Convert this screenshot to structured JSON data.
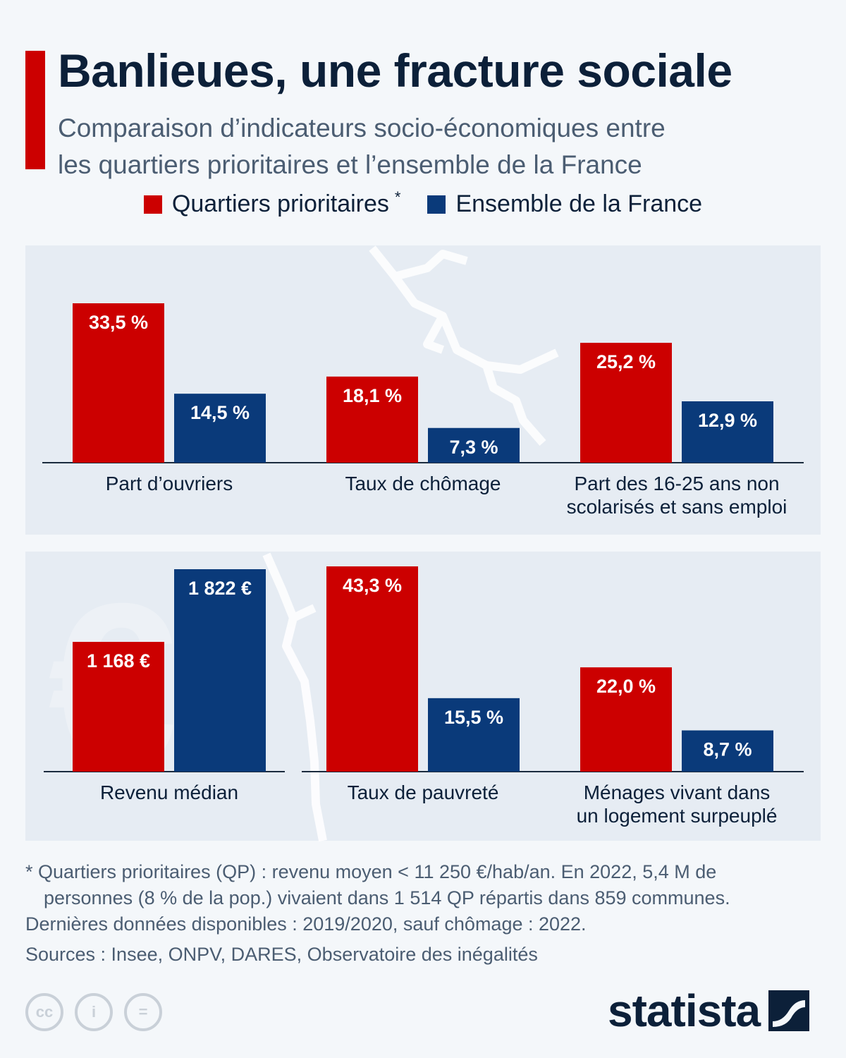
{
  "header": {
    "title": "Banlieues, une fracture sociale",
    "subtitle_lines": [
      "Comparaison d’indicateurs socio-économiques entre",
      "les quartiers prioritaires et l’ensemble de la France"
    ]
  },
  "legend": {
    "qp_label": "Quartiers prioritaires",
    "qp_note": "*",
    "france_label": "Ensemble de la France"
  },
  "colors": {
    "qp": "#cc0000",
    "france": "#0a3a7a",
    "accent": "#cc0000",
    "panel_bg": "#e6ecf3",
    "text_dark": "#0c2039"
  },
  "chart_data": [
    {
      "type": "bar",
      "unit": "%",
      "series_names": [
        "Quartiers prioritaires",
        "Ensemble de la France"
      ],
      "groups": [
        {
          "category": "Part d’ouvriers",
          "values": [
            33.5,
            14.5
          ],
          "labels": [
            "33,5 %",
            "14,5 %"
          ]
        },
        {
          "category": "Taux de chômage",
          "values": [
            18.1,
            7.3
          ],
          "labels": [
            "18,1 %",
            "7,3 %"
          ]
        },
        {
          "category": "Part des 16-25 ans non scolarisés et sans emploi",
          "category_lines": [
            "Part des 16-25 ans non",
            "scolarisés et sans emploi"
          ],
          "values": [
            25.2,
            12.9
          ],
          "labels": [
            "25,2 %",
            "12,9 %"
          ]
        }
      ]
    },
    {
      "type": "bar",
      "unit": "€",
      "series_names": [
        "Quartiers prioritaires",
        "Ensemble de la France"
      ],
      "groups": [
        {
          "category": "Revenu médian",
          "values": [
            1168,
            1822
          ],
          "labels": [
            "1 168 €",
            "1 822 €"
          ]
        }
      ]
    },
    {
      "type": "bar",
      "unit": "%",
      "series_names": [
        "Quartiers prioritaires",
        "Ensemble de la France"
      ],
      "groups": [
        {
          "category": "Taux de pauvreté",
          "values": [
            43.3,
            15.5
          ],
          "labels": [
            "43,3 %",
            "15,5 %"
          ]
        },
        {
          "category": "Ménages vivant dans un logement surpeuplé",
          "category_lines": [
            "Ménages vivant dans",
            "un logement surpeuplé"
          ],
          "values": [
            22.0,
            8.7
          ],
          "labels": [
            "22,0 %",
            "8,7 %"
          ]
        }
      ]
    }
  ],
  "euro_symbol": "€",
  "footnotes": {
    "note_line1": "* Quartiers prioritaires (QP) : revenu moyen < 11 250 €/hab/an. En 2022, 5,4 M de",
    "note_line2": "personnes (8 % de la pop.) vivaient dans 1 514 QP répartis dans 859 communes.",
    "note_line3": "Dernières données disponibles : 2019/2020, sauf chômage : 2022.",
    "sources": "Sources : Insee, ONPV, DARES, Observatoire des inégalités"
  },
  "license_icons": [
    {
      "name": "cc-icon",
      "glyph": "cc"
    },
    {
      "name": "attribution-icon",
      "glyph": "i"
    },
    {
      "name": "no-derivatives-icon",
      "glyph": "="
    }
  ],
  "brand": {
    "name": "statista"
  }
}
